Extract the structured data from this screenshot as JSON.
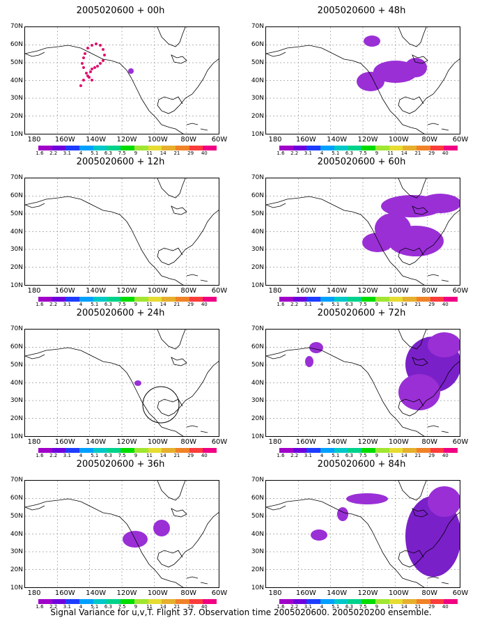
{
  "panels": [
    {
      "title": "2005020600 + 00h"
    },
    {
      "title": "2005020600 + 48h"
    },
    {
      "title": "2005020600 + 12h"
    },
    {
      "title": "2005020600 + 60h"
    },
    {
      "title": "2005020600 + 24h"
    },
    {
      "title": "2005020600 + 72h"
    },
    {
      "title": "2005020600 + 36h"
    },
    {
      "title": "2005020600 + 84h"
    }
  ],
  "lat_labels": [
    "70N",
    "60N",
    "50N",
    "40N",
    "30N",
    "20N",
    "10N"
  ],
  "lon_labels": [
    "180",
    "160W",
    "140W",
    "120W",
    "100W",
    "80W",
    "60W"
  ],
  "colorbar": {
    "labels": [
      "1.6",
      "2.2",
      "3.1",
      "4",
      "5.1",
      "6.3",
      "7.5",
      "9",
      "11",
      "14",
      "21",
      "29",
      "40"
    ],
    "colors": [
      "#a000c8",
      "#6e00dc",
      "#1e3cff",
      "#00a0ff",
      "#00c8c8",
      "#00d28c",
      "#00dc00",
      "#a0e632",
      "#e6dc32",
      "#e6af2d",
      "#f08228",
      "#fa3c3c",
      "#f00082"
    ]
  },
  "footer": "Signal Variance for u,v,T. Flight 37. Observation time 2005020600. 2005020200 ensemble."
}
